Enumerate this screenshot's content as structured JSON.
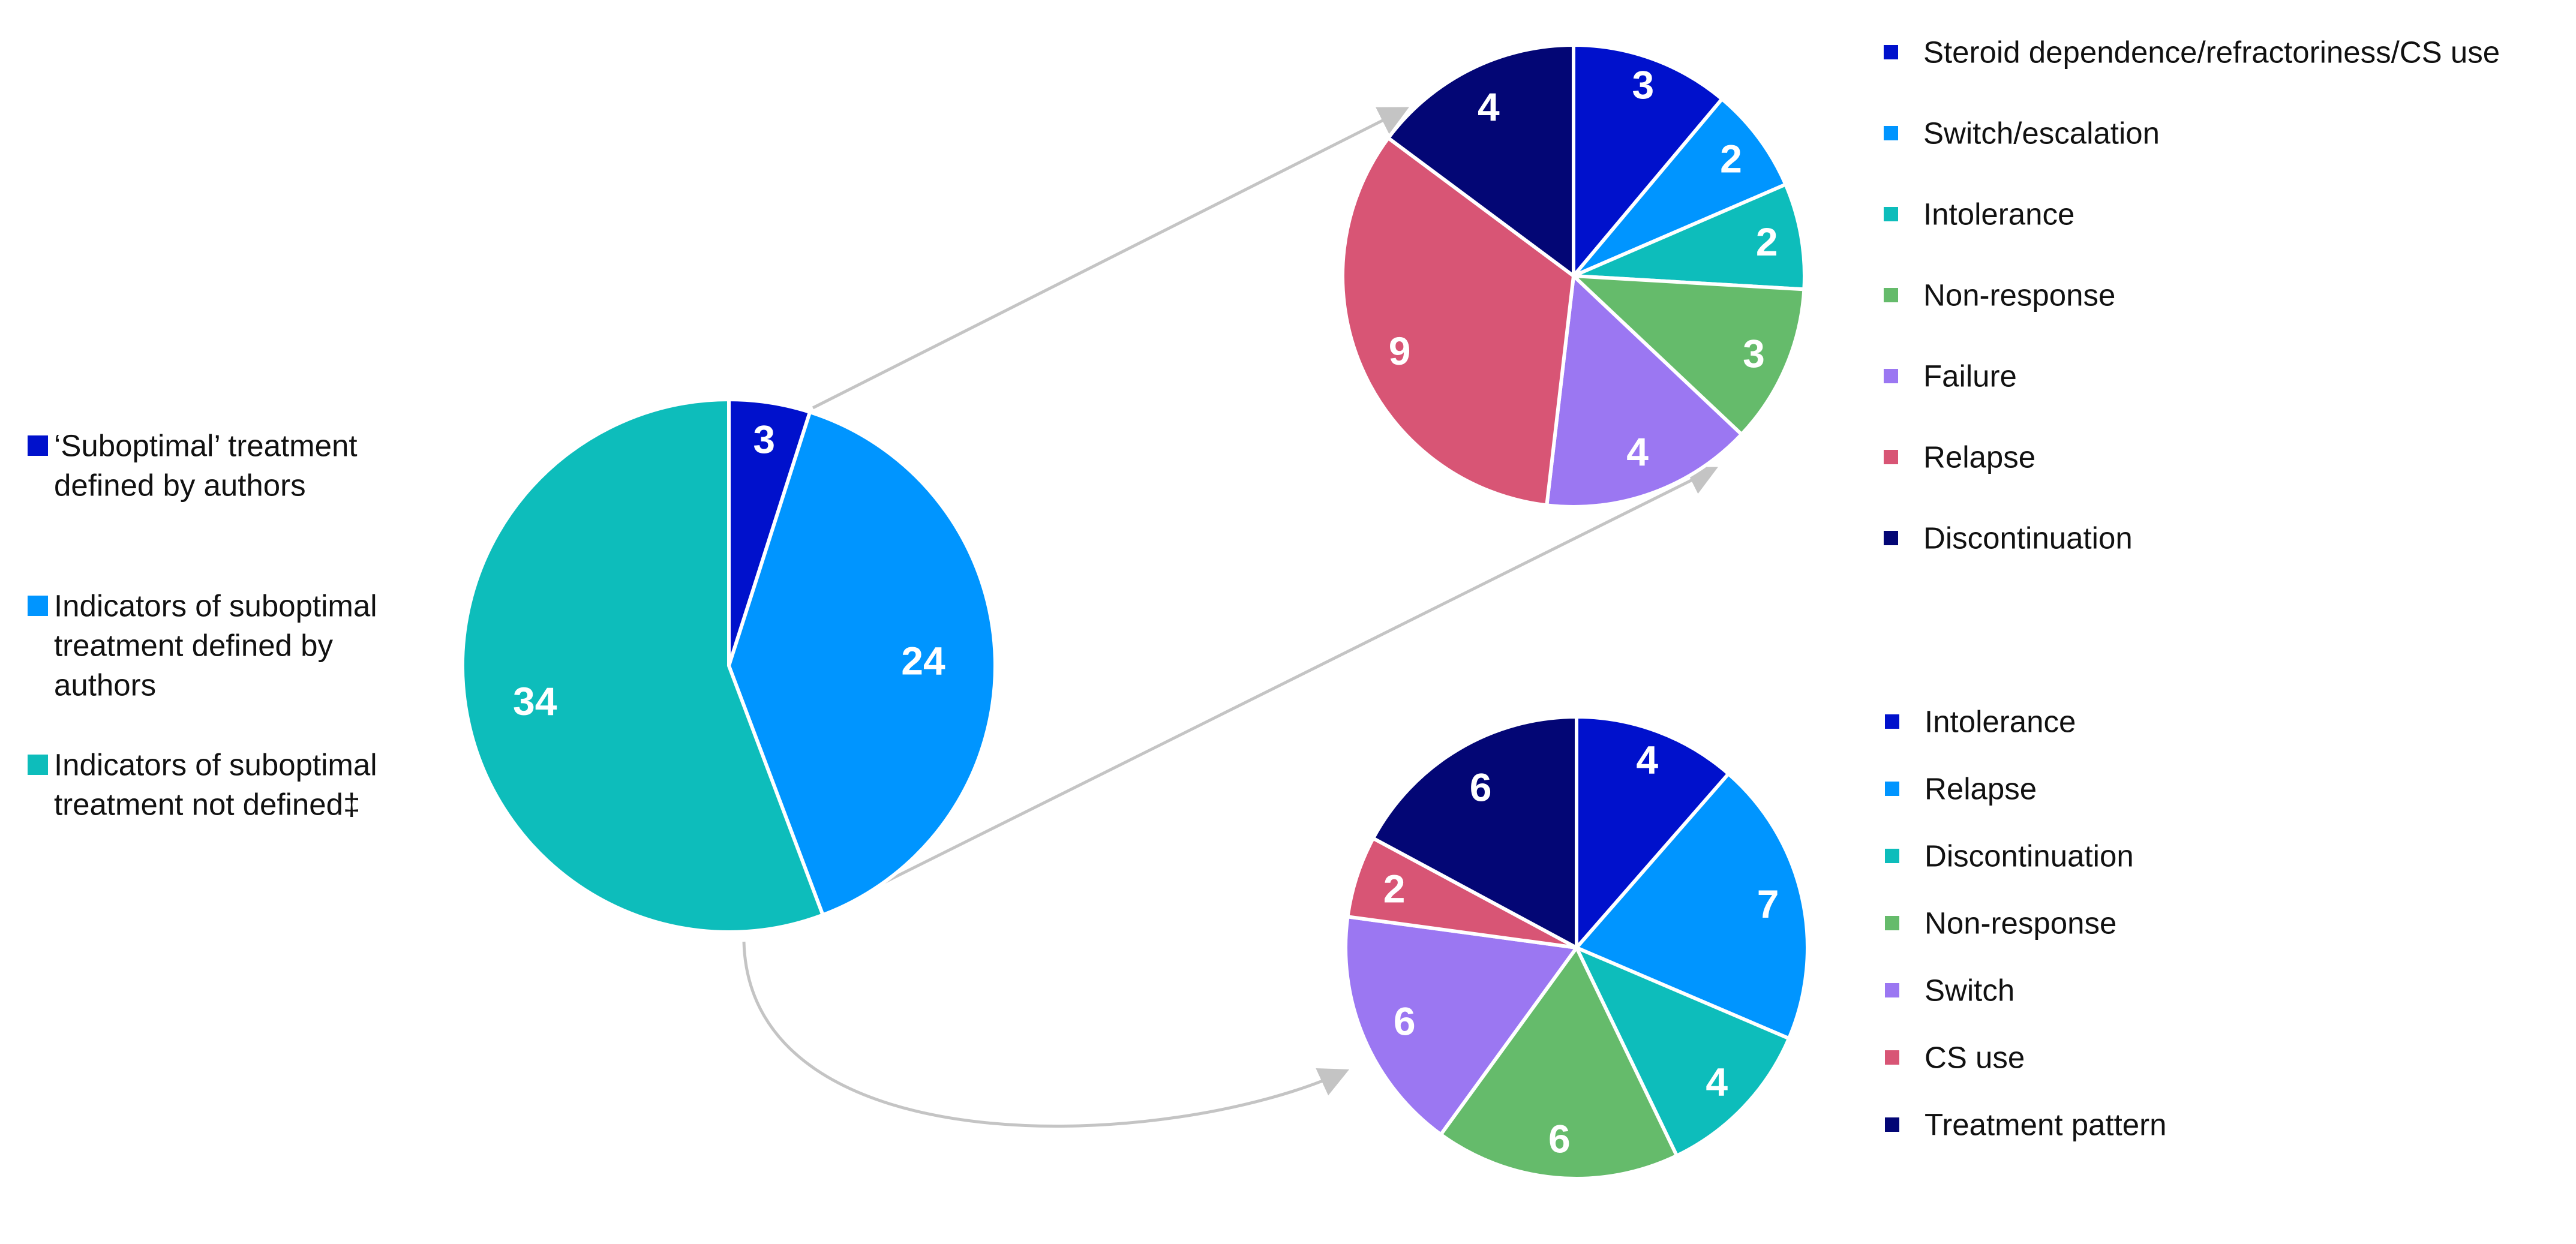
{
  "chart_data": [
    {
      "type": "pie",
      "slices": [
        {
          "label": "‘Suboptimal’ treatment defined by authors",
          "legend_lines": [
            "‘Suboptimal’ treatment",
            "defined by authors"
          ],
          "value": 3,
          "color": "#0011cc"
        },
        {
          "label": "Indicators of suboptimal treatment defined by authors",
          "legend_lines": [
            "Indicators of suboptimal",
            "treatment defined by",
            "authors"
          ],
          "value": 24,
          "color": "#0095ff"
        },
        {
          "label": "Indicators of suboptimal treatment not defined‡",
          "legend_lines": [
            "Indicators of suboptimal",
            "treatment not defined‡"
          ],
          "value": 34,
          "color": "#0dbdbb"
        }
      ],
      "legend_position": "left"
    },
    {
      "type": "pie",
      "slices": [
        {
          "label": "Steroid dependence/refractoriness/CS use",
          "value": 3,
          "color": "#0011cc"
        },
        {
          "label": "Switch/escalation",
          "value": 2,
          "color": "#0095ff"
        },
        {
          "label": "Intolerance",
          "value": 2,
          "color": "#0dbdbb"
        },
        {
          "label": "Non-response",
          "value": 3,
          "color": "#65bb6b"
        },
        {
          "label": "Failure",
          "value": 4,
          "color": "#9b77f2"
        },
        {
          "label": "Relapse",
          "value": 9,
          "color": "#d85575"
        },
        {
          "label": "Discontinuation",
          "value": 4,
          "color": "#030675"
        }
      ],
      "legend_position": "right"
    },
    {
      "type": "pie",
      "slices": [
        {
          "label": "Intolerance",
          "value": 4,
          "color": "#0011cc"
        },
        {
          "label": "Relapse",
          "value": 7,
          "color": "#0095ff"
        },
        {
          "label": "Discontinuation",
          "value": 4,
          "color": "#0dbdbb"
        },
        {
          "label": "Non-response",
          "value": 6,
          "color": "#65bb6b"
        },
        {
          "label": "Switch",
          "value": 6,
          "color": "#9b77f2"
        },
        {
          "label": "CS use",
          "value": 2,
          "color": "#d85575"
        },
        {
          "label": "Treatment pattern",
          "value": 6,
          "color": "#030675"
        }
      ],
      "legend_position": "right"
    }
  ],
  "colors": {
    "connector_arrow": "#c4c4c4",
    "slice_border": "#ffffff",
    "label_text": "#ffffff"
  }
}
